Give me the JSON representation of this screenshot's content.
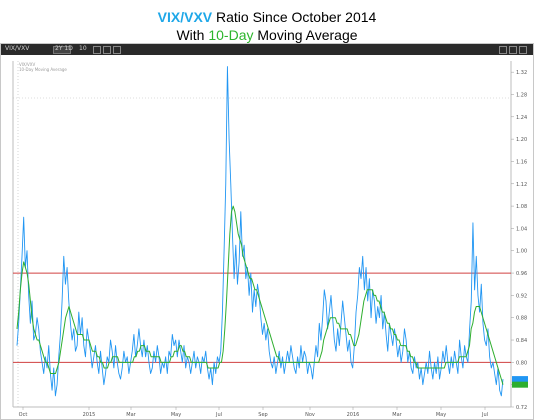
{
  "title": {
    "part1": "VIX/VXV",
    "part2": " Ratio Since October 2014",
    "part3": "With ",
    "part4": "10-Day",
    "part5": " Moving Average"
  },
  "toolbar": {
    "symbol": "VIX/VXV",
    "timeframe": "2Y 1D",
    "study": "10"
  },
  "colors": {
    "ratio_line": "#2196f3",
    "moving_average": "#2eae2e",
    "reference_lines": "#d04040",
    "toolbar_bg": "#2a2a2a"
  },
  "chart_data": {
    "type": "line",
    "title": "VIX/VXV Ratio Since October 2014 With 10-Day Moving Average",
    "x_tick_labels": [
      "Oct",
      "2015",
      "Mar",
      "May",
      "Jul",
      "Sep",
      "Nov",
      "2016",
      "Mar",
      "May",
      "Jul"
    ],
    "y_tick_labels": [
      "1.32",
      "1.28",
      "1.24",
      "1.20",
      "1.16",
      "1.12",
      "1.08",
      "1.04",
      "1.00",
      "0.96",
      "0.92",
      "0.88",
      "0.84",
      "0.80",
      "0.76",
      "0.72"
    ],
    "ylim": [
      0.72,
      1.34
    ],
    "reference_lines": [
      0.96,
      0.8
    ],
    "grid": false,
    "series": [
      {
        "name": "VIX/VXV",
        "values": [
          0.83,
          0.87,
          0.93,
          0.99,
          1.06,
          0.97,
          1.0,
          0.92,
          0.87,
          0.91,
          0.84,
          0.85,
          0.88,
          0.86,
          0.82,
          0.8,
          0.78,
          0.81,
          0.79,
          0.83,
          0.78,
          0.75,
          0.79,
          0.74,
          0.76,
          0.81,
          0.85,
          0.91,
          0.99,
          0.94,
          0.97,
          0.91,
          0.87,
          0.84,
          0.86,
          0.82,
          0.83,
          0.89,
          0.85,
          0.88,
          0.83,
          0.81,
          0.86,
          0.84,
          0.82,
          0.79,
          0.81,
          0.83,
          0.8,
          0.78,
          0.82,
          0.79,
          0.76,
          0.78,
          0.81,
          0.8,
          0.84,
          0.82,
          0.79,
          0.83,
          0.8,
          0.78,
          0.77,
          0.79,
          0.82,
          0.8,
          0.81,
          0.78,
          0.8,
          0.82,
          0.85,
          0.81,
          0.83,
          0.86,
          0.83,
          0.81,
          0.84,
          0.81,
          0.83,
          0.8,
          0.78,
          0.79,
          0.82,
          0.8,
          0.83,
          0.81,
          0.78,
          0.8,
          0.79,
          0.81,
          0.78,
          0.82,
          0.81,
          0.85,
          0.83,
          0.84,
          0.81,
          0.84,
          0.82,
          0.8,
          0.83,
          0.79,
          0.81,
          0.8,
          0.78,
          0.8,
          0.82,
          0.79,
          0.81,
          0.8,
          0.78,
          0.81,
          0.8,
          0.82,
          0.79,
          0.77,
          0.79,
          0.76,
          0.8,
          0.78,
          0.81,
          0.8,
          0.82,
          0.89,
          1.0,
          1.12,
          1.33,
          1.2,
          1.12,
          1.03,
          0.95,
          1.01,
          0.94,
          0.98,
          1.07,
          0.99,
          1.01,
          0.95,
          0.97,
          0.92,
          0.96,
          0.89,
          0.93,
          0.9,
          0.94,
          0.92,
          0.88,
          0.85,
          0.87,
          0.84,
          0.86,
          0.82,
          0.8,
          0.79,
          0.81,
          0.78,
          0.8,
          0.82,
          0.79,
          0.81,
          0.78,
          0.8,
          0.82,
          0.8,
          0.83,
          0.81,
          0.79,
          0.78,
          0.81,
          0.79,
          0.83,
          0.8,
          0.82,
          0.81,
          0.78,
          0.8,
          0.79,
          0.77,
          0.8,
          0.83,
          0.81,
          0.87,
          0.84,
          0.88,
          0.93,
          0.91,
          0.86,
          0.89,
          0.92,
          0.88,
          0.84,
          0.82,
          0.86,
          0.83,
          0.87,
          0.91,
          0.88,
          0.85,
          0.82,
          0.84,
          0.8,
          0.79,
          0.83,
          0.89,
          0.92,
          0.97,
          0.95,
          0.99,
          0.93,
          0.97,
          0.91,
          0.95,
          0.88,
          0.93,
          0.91,
          0.87,
          0.9,
          0.88,
          0.92,
          0.86,
          0.89,
          0.85,
          0.82,
          0.87,
          0.85,
          0.83,
          0.86,
          0.84,
          0.81,
          0.83,
          0.8,
          0.82,
          0.86,
          0.84,
          0.8,
          0.82,
          0.79,
          0.78,
          0.81,
          0.79,
          0.8,
          0.77,
          0.79,
          0.76,
          0.78,
          0.8,
          0.78,
          0.82,
          0.79,
          0.77,
          0.8,
          0.78,
          0.81,
          0.77,
          0.79,
          0.82,
          0.8,
          0.83,
          0.8,
          0.78,
          0.81,
          0.79,
          0.82,
          0.8,
          0.78,
          0.84,
          0.81,
          0.79,
          0.83,
          0.81,
          0.8,
          0.86,
          0.91,
          1.05,
          0.93,
          0.99,
          0.92,
          0.89,
          0.94,
          0.87,
          0.84,
          0.83,
          0.86,
          0.81,
          0.79,
          0.8,
          0.78,
          0.76,
          0.79,
          0.75,
          0.74,
          0.77
        ],
        "color": "#2196f3"
      },
      {
        "name": "10-Day Moving Average",
        "values": [
          0.86,
          0.89,
          0.93,
          0.96,
          0.98,
          0.97,
          0.96,
          0.94,
          0.91,
          0.88,
          0.86,
          0.85,
          0.84,
          0.84,
          0.83,
          0.82,
          0.81,
          0.8,
          0.8,
          0.79,
          0.78,
          0.78,
          0.78,
          0.78,
          0.79,
          0.8,
          0.82,
          0.84,
          0.86,
          0.88,
          0.89,
          0.9,
          0.89,
          0.88,
          0.87,
          0.86,
          0.85,
          0.85,
          0.85,
          0.85,
          0.84,
          0.84,
          0.84,
          0.84,
          0.83,
          0.82,
          0.82,
          0.82,
          0.81,
          0.81,
          0.8,
          0.8,
          0.79,
          0.79,
          0.79,
          0.8,
          0.8,
          0.81,
          0.81,
          0.81,
          0.81,
          0.8,
          0.8,
          0.8,
          0.8,
          0.8,
          0.8,
          0.8,
          0.8,
          0.8,
          0.81,
          0.81,
          0.82,
          0.82,
          0.83,
          0.83,
          0.83,
          0.82,
          0.82,
          0.82,
          0.81,
          0.81,
          0.81,
          0.81,
          0.81,
          0.81,
          0.8,
          0.8,
          0.8,
          0.8,
          0.8,
          0.8,
          0.81,
          0.81,
          0.82,
          0.82,
          0.82,
          0.83,
          0.83,
          0.82,
          0.82,
          0.81,
          0.81,
          0.81,
          0.8,
          0.8,
          0.8,
          0.8,
          0.8,
          0.8,
          0.8,
          0.8,
          0.8,
          0.8,
          0.79,
          0.79,
          0.79,
          0.79,
          0.79,
          0.79,
          0.79,
          0.8,
          0.8,
          0.82,
          0.86,
          0.91,
          0.97,
          1.03,
          1.07,
          1.08,
          1.07,
          1.05,
          1.03,
          1.02,
          1.01,
          0.99,
          0.98,
          0.97,
          0.96,
          0.95,
          0.95,
          0.94,
          0.93,
          0.93,
          0.92,
          0.91,
          0.9,
          0.89,
          0.88,
          0.87,
          0.86,
          0.85,
          0.84,
          0.83,
          0.82,
          0.81,
          0.81,
          0.8,
          0.8,
          0.8,
          0.8,
          0.8,
          0.8,
          0.8,
          0.8,
          0.8,
          0.8,
          0.8,
          0.8,
          0.8,
          0.8,
          0.8,
          0.8,
          0.8,
          0.8,
          0.8,
          0.8,
          0.8,
          0.8,
          0.8,
          0.8,
          0.81,
          0.82,
          0.84,
          0.85,
          0.86,
          0.87,
          0.88,
          0.88,
          0.88,
          0.88,
          0.87,
          0.87,
          0.86,
          0.86,
          0.86,
          0.86,
          0.86,
          0.85,
          0.85,
          0.84,
          0.83,
          0.83,
          0.84,
          0.85,
          0.87,
          0.89,
          0.91,
          0.92,
          0.93,
          0.93,
          0.93,
          0.93,
          0.92,
          0.92,
          0.91,
          0.91,
          0.9,
          0.89,
          0.89,
          0.88,
          0.87,
          0.87,
          0.86,
          0.86,
          0.85,
          0.85,
          0.84,
          0.84,
          0.83,
          0.83,
          0.83,
          0.83,
          0.82,
          0.82,
          0.81,
          0.81,
          0.8,
          0.8,
          0.79,
          0.79,
          0.79,
          0.79,
          0.79,
          0.79,
          0.79,
          0.79,
          0.79,
          0.79,
          0.79,
          0.79,
          0.79,
          0.79,
          0.79,
          0.79,
          0.79,
          0.8,
          0.8,
          0.8,
          0.8,
          0.8,
          0.8,
          0.8,
          0.8,
          0.81,
          0.81,
          0.81,
          0.81,
          0.81,
          0.82,
          0.83,
          0.86,
          0.87,
          0.89,
          0.9,
          0.9,
          0.9,
          0.89,
          0.88,
          0.87,
          0.86,
          0.85,
          0.84,
          0.83,
          0.82,
          0.81,
          0.8,
          0.79,
          0.78,
          0.77,
          0.76
        ],
        "color": "#2eae2e"
      }
    ]
  }
}
